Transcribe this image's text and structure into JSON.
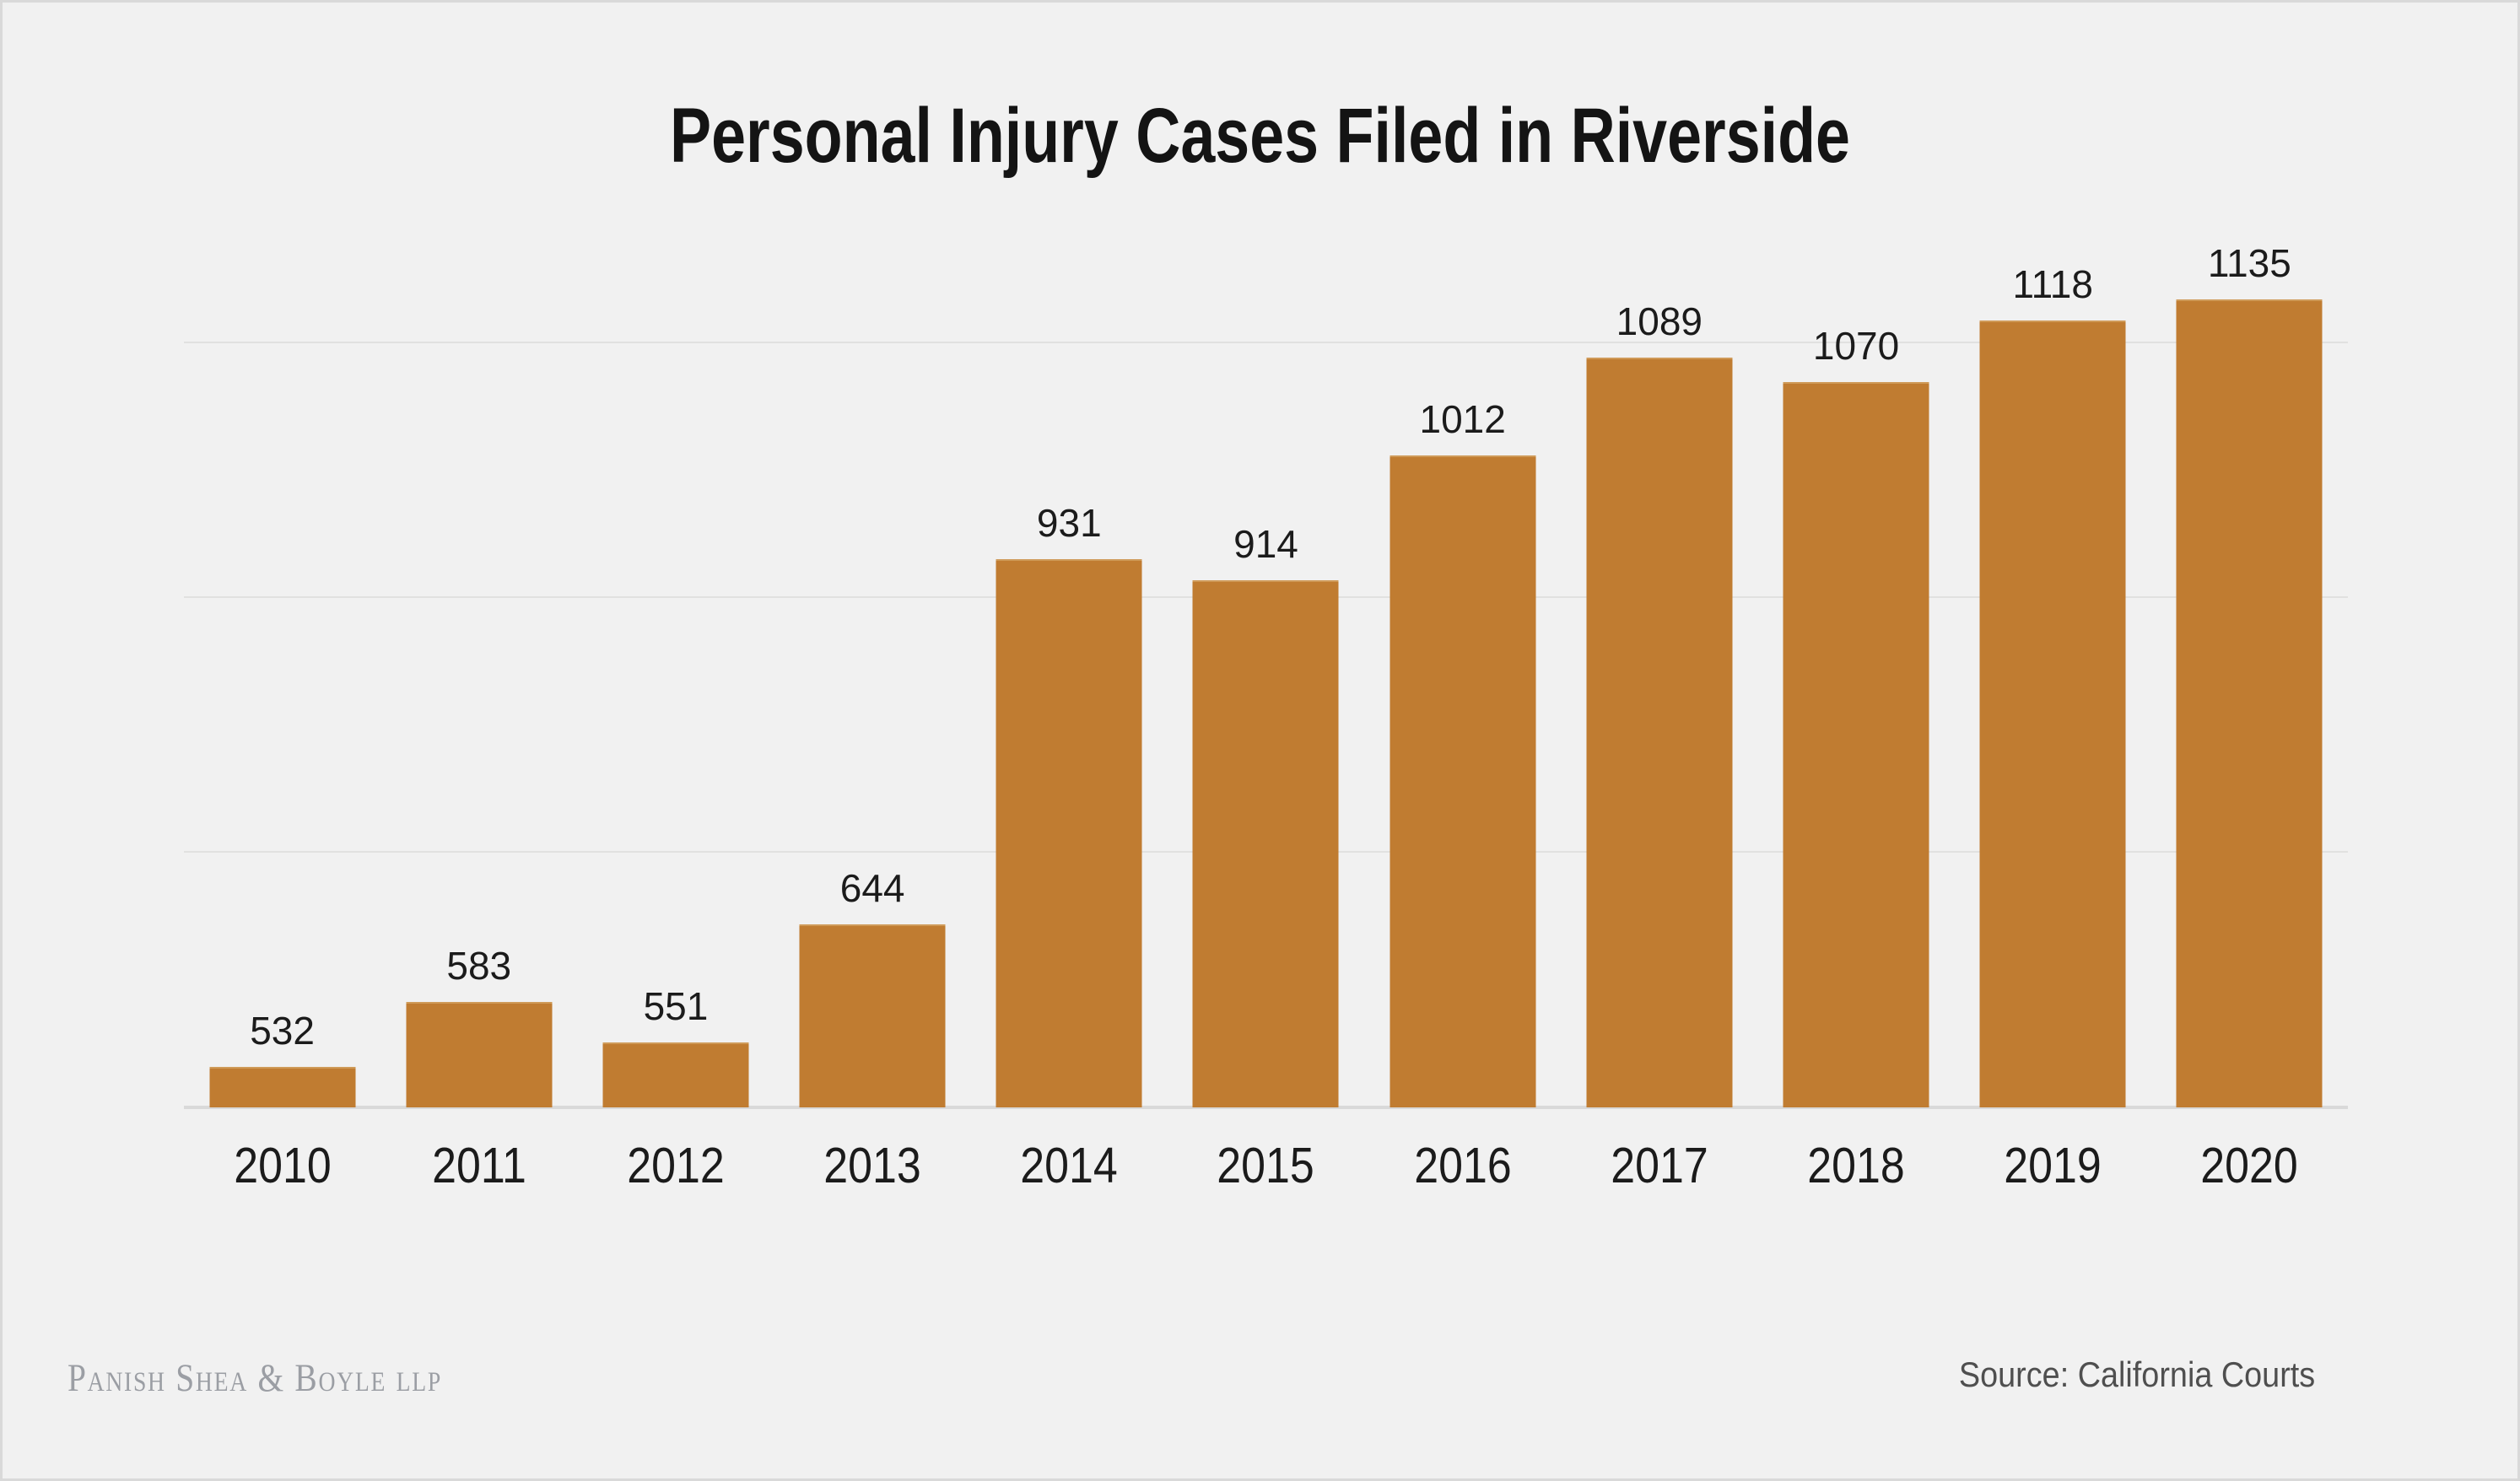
{
  "title": "Personal Injury Cases Filed in Riverside",
  "chart_data": {
    "type": "bar",
    "title": "Personal Injury Cases Filed in Riverside",
    "categories": [
      "2010",
      "2011",
      "2012",
      "2013",
      "2014",
      "2015",
      "2016",
      "2017",
      "2018",
      "2019",
      "2020"
    ],
    "values": [
      532,
      583,
      551,
      644,
      931,
      914,
      1012,
      1089,
      1070,
      1118,
      1135
    ],
    "xlabel": "",
    "ylabel": "",
    "ylim": [
      500,
      1368
    ],
    "gridlines": [
      700,
      900,
      1100
    ],
    "grid": "horizontal",
    "y_axis_tick_labels": "none",
    "legend_position": "none",
    "value_labels_shown": true,
    "bar_color": "#c07c31"
  },
  "footer": {
    "brand": "Panish Shea & Boyle LLP",
    "brand_display": "Panish Shea & Boyle llp",
    "source": "Source: California Courts"
  },
  "colors": {
    "background": "#f1f1f1",
    "frame_border": "#d9d9d9",
    "bar": "#c07c31",
    "bar_top_edge": "#cf9a58",
    "gridline": "#e1e1e0",
    "axis_line": "#d9d9d9",
    "title_text": "#141414",
    "label_text": "#1b1b1b",
    "brand_text": "#9b9ea4",
    "source_text": "#4f4f4f"
  }
}
